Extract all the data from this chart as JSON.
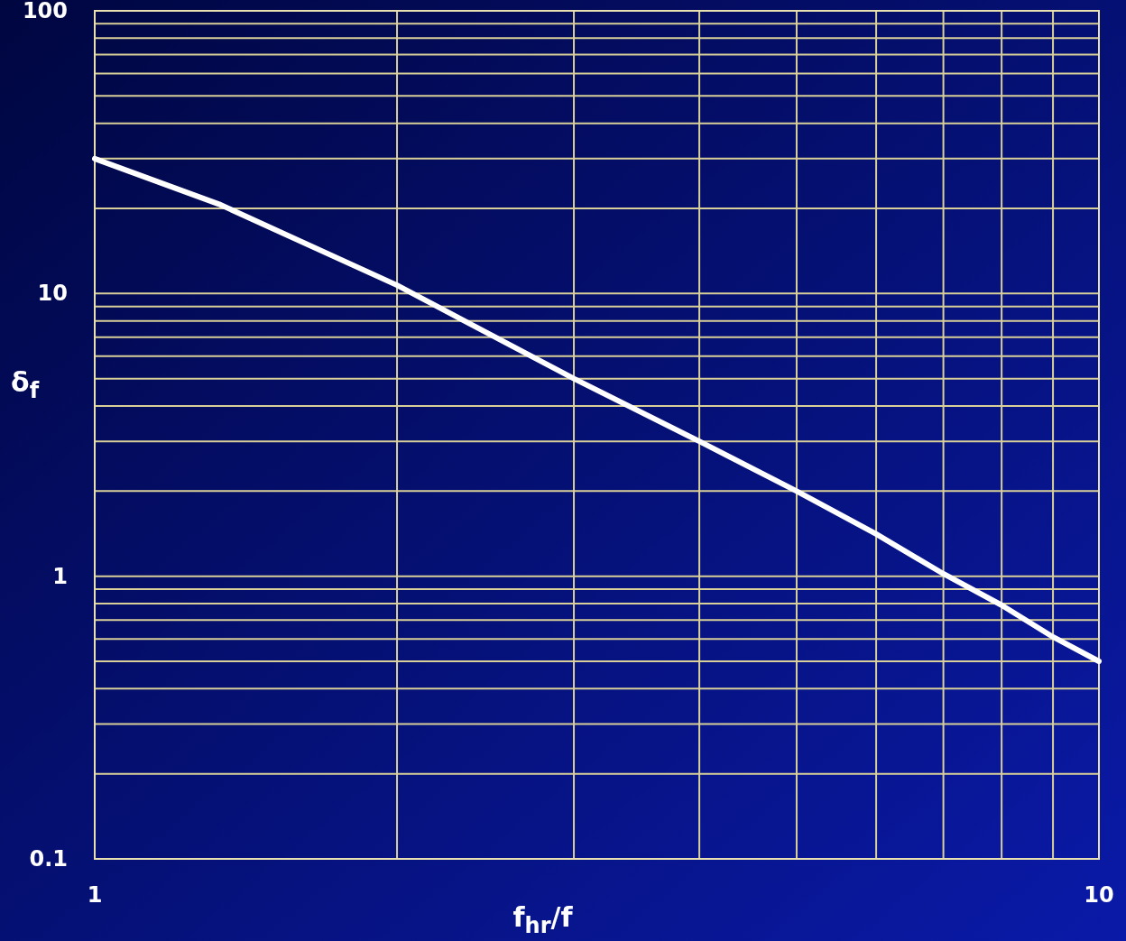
{
  "chart_data": {
    "type": "line",
    "xlabel": "f$_{hr}$/f",
    "ylabel": "δ$_{f}$",
    "log": "xy",
    "x": [
      1,
      1.33,
      2,
      3,
      4,
      5,
      6,
      7,
      8,
      9,
      10
    ],
    "series": [
      {
        "color": "#ffffff",
        "values": [
          30,
          20.7,
          10.7,
          5.0,
          3.0,
          2.0,
          1.41,
          1.02,
          0.79,
          0.61,
          0.5
        ]
      }
    ],
    "xlim": [
      1,
      10
    ],
    "ylim": [
      0.1,
      100
    ],
    "xticks": [
      1,
      {
        "value": 2,
        "label": null
      },
      {
        "value": 3,
        "label": null
      },
      {
        "value": 4,
        "label": null
      },
      {
        "value": 5,
        "label": null
      },
      {
        "value": 6,
        "label": null
      },
      {
        "value": 7,
        "label": null
      },
      {
        "value": 8,
        "label": null
      },
      {
        "value": 9,
        "label": null
      },
      10
    ],
    "yticks": [
      0.1,
      {
        "value": 0.2,
        "label": null
      },
      {
        "value": 0.3,
        "label": null
      },
      {
        "value": 0.4,
        "label": null
      },
      {
        "value": 0.5,
        "label": null
      },
      {
        "value": 0.6,
        "label": null
      },
      {
        "value": 0.7,
        "label": null
      },
      {
        "value": 0.8,
        "label": null
      },
      {
        "value": 0.9,
        "label": null
      },
      1,
      {
        "value": 2,
        "label": null
      },
      {
        "value": 3,
        "label": null
      },
      {
        "value": 4,
        "label": null
      },
      {
        "value": 5,
        "label": null
      },
      {
        "value": 6,
        "label": null
      },
      {
        "value": 7,
        "label": null
      },
      {
        "value": 8,
        "label": null
      },
      {
        "value": 9,
        "label": null
      },
      10,
      {
        "value": 20,
        "label": null
      },
      {
        "value": 30,
        "label": null
      },
      {
        "value": 40,
        "label": null
      },
      {
        "value": 50,
        "label": null
      },
      {
        "value": 60,
        "label": null
      },
      {
        "value": 70,
        "label": null
      },
      {
        "value": 80,
        "label": null
      },
      {
        "value": 90,
        "label": null
      },
      100
    ],
    "grid": true,
    "marker": "none",
    "line_style": "solid"
  }
}
